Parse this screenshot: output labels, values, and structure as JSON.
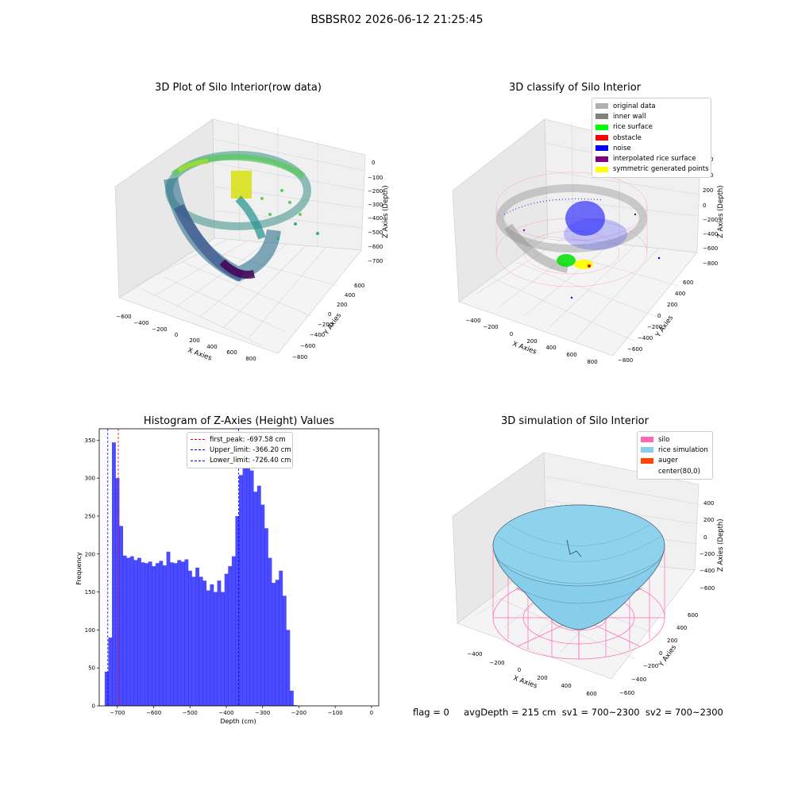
{
  "suptitle": "BSBSR02 2026-06-12 21:25:45",
  "panels": {
    "raw": {
      "title": "3D Plot of Silo Interior(row data)",
      "xlabel": "X Axies",
      "ylabel": "Y Axies",
      "zlabel": "Z Axies (Depth)",
      "xticks": [
        "−600",
        "−400",
        "−200",
        "0",
        "200",
        "400",
        "600",
        "800"
      ],
      "yticks": [
        "−800",
        "−600",
        "−400",
        "−200",
        "0",
        "200",
        "400",
        "600"
      ],
      "zticks": [
        "0",
        "−100",
        "−200",
        "−300",
        "−400",
        "−500",
        "−600",
        "−700"
      ],
      "colormap": [
        "#440154",
        "#3b528b",
        "#21918c",
        "#5ec962",
        "#fde725"
      ]
    },
    "classify": {
      "title": "3D classify of Silo Interior",
      "xlabel": "X Axies",
      "ylabel": "Y Axies",
      "zlabel": "Z Axies (Depth)",
      "xticks": [
        "−400",
        "−200",
        "0",
        "200",
        "400",
        "600",
        "800"
      ],
      "yticks": [
        "−800",
        "−600",
        "−400",
        "−200",
        "0",
        "200",
        "400",
        "600"
      ],
      "zticks": [
        "600",
        "400",
        "200",
        "0",
        "−200",
        "−400",
        "−600",
        "−800"
      ],
      "legend": [
        {
          "label": "original data",
          "color": "#b0b0b0"
        },
        {
          "label": "inner wall",
          "color": "#808080"
        },
        {
          "label": "rice surface",
          "color": "#00ff00"
        },
        {
          "label": "obstacle",
          "color": "#ff0000"
        },
        {
          "label": "noise",
          "color": "#0000ff"
        },
        {
          "label": "interpolated rice surface",
          "color": "#800080"
        },
        {
          "label": "symmetric generated points",
          "color": "#ffff00"
        }
      ]
    },
    "simulation": {
      "title": "3D simulation of Silo Interior",
      "xlabel": "X Axies",
      "ylabel": "Y Axies",
      "zlabel": "Z Axies (Depth)",
      "xticks": [
        "−400",
        "−200",
        "0",
        "200",
        "400",
        "600"
      ],
      "yticks": [
        "−600",
        "−400",
        "−200",
        "0",
        "200",
        "400",
        "600"
      ],
      "zticks": [
        "400",
        "200",
        "0",
        "−200",
        "−400",
        "−600"
      ],
      "legend": [
        {
          "label": "silo",
          "color": "#ff69b4"
        },
        {
          "label": "rice simulation",
          "color": "#87ceeb"
        },
        {
          "label": "auger",
          "color": "#ff4500"
        },
        {
          "label": "center(80,0)",
          "color": "#ffffff"
        }
      ],
      "footer": "flag = 0     avgDepth = 215 cm  sv1 = 700~2300  sv2 = 700~2300"
    }
  },
  "chart_data": {
    "type": "bar",
    "title": "Histogram of Z-Axies (Height) Values",
    "xlabel": "Depth (cm)",
    "ylabel": "Frequency",
    "xlim": [
      -750,
      20
    ],
    "ylim": [
      0,
      365
    ],
    "xticks": [
      -700,
      -600,
      -500,
      -400,
      -300,
      -200,
      -100,
      0
    ],
    "yticks": [
      0,
      50,
      100,
      150,
      200,
      250,
      300,
      350
    ],
    "bar_color": "#0000ff",
    "bins_start": -735,
    "bin_width": 10,
    "values": [
      45,
      90,
      347,
      300,
      237,
      198,
      195,
      197,
      192,
      195,
      189,
      188,
      190,
      184,
      188,
      191,
      185,
      203,
      189,
      188,
      192,
      190,
      193,
      178,
      170,
      182,
      170,
      165,
      152,
      160,
      150,
      165,
      150,
      174,
      184,
      197,
      250,
      304,
      345,
      320,
      310,
      282,
      290,
      265,
      234,
      195,
      162,
      166,
      178,
      145,
      100,
      20,
      1
    ],
    "lines": [
      {
        "label": "first_peak: -697.58 cm",
        "x": -697.58,
        "color": "#ff0000"
      },
      {
        "label": "Upper_limit: -366.20 cm",
        "x": -366.2,
        "color": "#0000ff"
      },
      {
        "label": "Lower_limit: -726.40 cm",
        "x": -726.4,
        "color": "#0000ff"
      }
    ]
  }
}
